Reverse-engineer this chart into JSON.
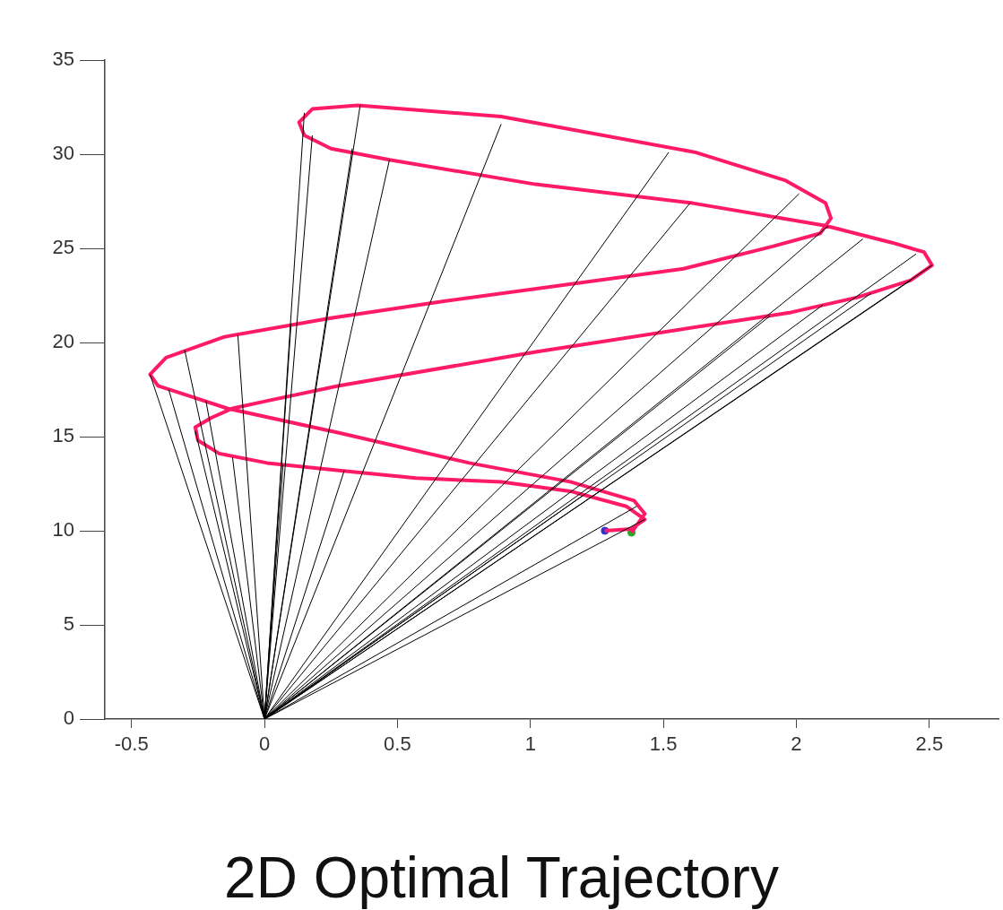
{
  "chart_data": {
    "type": "line",
    "title": "2D Optimal Trajectory",
    "xlim": [
      -0.6,
      2.76
    ],
    "ylim": [
      0,
      35
    ],
    "xticks": [
      -0.5,
      0,
      0.5,
      1,
      1.5,
      2,
      2.5
    ],
    "yticks": [
      0,
      5,
      10,
      15,
      20,
      25,
      30,
      35
    ],
    "grid": false,
    "legend": false,
    "series": [
      {
        "type": "line",
        "color": "#000000",
        "marker": "none",
        "x": [
          0,
          1.43
        ],
        "values": [
          0,
          10.6
        ]
      },
      {
        "type": "line",
        "color": "#000000",
        "marker": "none",
        "x": [
          0,
          1.4
        ],
        "values": [
          0,
          11.3
        ]
      },
      {
        "type": "line",
        "color": "#000000",
        "marker": "none",
        "x": [
          0,
          1.2
        ],
        "values": [
          0,
          11.9
        ]
      },
      {
        "type": "line",
        "color": "#000000",
        "marker": "none",
        "x": [
          0,
          2.51
        ],
        "values": [
          0,
          24.1
        ]
      },
      {
        "type": "line",
        "color": "#000000",
        "marker": "none",
        "x": [
          0,
          2.43
        ],
        "values": [
          0,
          23.3
        ]
      },
      {
        "type": "line",
        "color": "#000000",
        "marker": "none",
        "x": [
          0,
          2.28
        ],
        "values": [
          0,
          22.6
        ]
      },
      {
        "type": "line",
        "color": "#000000",
        "marker": "none",
        "x": [
          0,
          2.1
        ],
        "values": [
          0,
          22.0
        ]
      },
      {
        "type": "line",
        "color": "#000000",
        "marker": "none",
        "x": [
          0,
          1.9
        ],
        "values": [
          0,
          21.4
        ]
      },
      {
        "type": "line",
        "color": "#000000",
        "marker": "none",
        "x": [
          0,
          2.45
        ],
        "values": [
          0,
          24.7
        ]
      },
      {
        "type": "line",
        "color": "#000000",
        "marker": "none",
        "x": [
          0,
          2.25
        ],
        "values": [
          0,
          25.5
        ]
      },
      {
        "type": "line",
        "color": "#000000",
        "marker": "none",
        "x": [
          0,
          2.12
        ],
        "values": [
          0,
          26.2
        ]
      },
      {
        "type": "line",
        "color": "#000000",
        "marker": "none",
        "x": [
          0,
          1.6
        ],
        "values": [
          0,
          27.4
        ]
      },
      {
        "type": "line",
        "color": "#000000",
        "marker": "none",
        "x": [
          0,
          2.01
        ],
        "values": [
          0,
          27.9
        ]
      },
      {
        "type": "line",
        "color": "#000000",
        "marker": "none",
        "x": [
          0,
          1.52
        ],
        "values": [
          0,
          30.1
        ]
      },
      {
        "type": "line",
        "color": "#000000",
        "marker": "none",
        "x": [
          0,
          0.89
        ],
        "values": [
          0,
          31.6
        ]
      },
      {
        "type": "line",
        "color": "#000000",
        "marker": "none",
        "x": [
          0,
          0.47
        ],
        "values": [
          0,
          29.7
        ]
      },
      {
        "type": "line",
        "color": "#000000",
        "marker": "none",
        "x": [
          0,
          0.33
        ],
        "values": [
          0,
          30.3
        ]
      },
      {
        "type": "line",
        "color": "#000000",
        "marker": "none",
        "x": [
          0,
          0.18
        ],
        "values": [
          0,
          31.0
        ]
      },
      {
        "type": "line",
        "color": "#000000",
        "marker": "none",
        "x": [
          0,
          0.15
        ],
        "values": [
          0,
          32.2
        ]
      },
      {
        "type": "line",
        "color": "#000000",
        "marker": "none",
        "x": [
          0,
          0.36
        ],
        "values": [
          0,
          32.6
        ]
      },
      {
        "type": "line",
        "color": "#000000",
        "marker": "none",
        "x": [
          0,
          -0.43
        ],
        "values": [
          0,
          18.3
        ]
      },
      {
        "type": "line",
        "color": "#000000",
        "marker": "none",
        "x": [
          0,
          -0.36
        ],
        "values": [
          0,
          17.5
        ]
      },
      {
        "type": "line",
        "color": "#000000",
        "marker": "none",
        "x": [
          0,
          -0.22
        ],
        "values": [
          0,
          16.9
        ]
      },
      {
        "type": "line",
        "color": "#000000",
        "marker": "none",
        "x": [
          0,
          -0.3
        ],
        "values": [
          0,
          19.6
        ]
      },
      {
        "type": "line",
        "color": "#000000",
        "marker": "none",
        "x": [
          0,
          -0.1
        ],
        "values": [
          0,
          20.4
        ]
      },
      {
        "type": "line",
        "color": "#000000",
        "marker": "none",
        "x": [
          0,
          0.1
        ],
        "values": [
          0,
          21.0
        ]
      },
      {
        "type": "line",
        "color": "#000000",
        "marker": "none",
        "x": [
          0,
          -0.26
        ],
        "values": [
          0,
          15.3
        ]
      },
      {
        "type": "line",
        "color": "#000000",
        "marker": "none",
        "x": [
          0,
          -0.12
        ],
        "values": [
          0,
          13.9
        ]
      },
      {
        "type": "line",
        "color": "#000000",
        "marker": "none",
        "x": [
          0,
          0.07
        ],
        "values": [
          0,
          13.5
        ]
      },
      {
        "type": "line",
        "color": "#000000",
        "marker": "none",
        "x": [
          0,
          0.3
        ],
        "values": [
          0,
          13.2
        ]
      },
      {
        "type": "line",
        "color": "#ff1a66",
        "marker": "none",
        "x": [
          1.28,
          1.38,
          1.43,
          1.36,
          1.15,
          0.89,
          0.57,
          0.28,
          0.01,
          -0.17,
          -0.25,
          -0.26,
          -0.2,
          -0.12,
          0.01,
          0.28,
          1.02,
          1.98,
          2.23,
          2.43,
          2.51,
          2.48,
          2.36,
          2.11,
          1.61,
          1.02,
          0.47,
          0.25,
          0.15,
          0.13,
          0.18,
          0.35,
          0.89,
          1.62,
          1.96,
          2.11,
          2.13,
          2.09,
          1.91,
          1.57,
          0.68,
          0.25,
          -0.15,
          -0.37,
          -0.43,
          -0.4,
          -0.27,
          -0.14,
          0.28,
          0.77,
          1.15,
          1.39,
          1.43,
          1.38
        ],
        "values": [
          10.0,
          10.1,
          10.6,
          11.3,
          12.1,
          12.6,
          12.8,
          13.2,
          13.6,
          14.1,
          14.8,
          15.5,
          16.0,
          16.5,
          16.9,
          17.7,
          19.5,
          21.6,
          22.4,
          23.3,
          24.1,
          24.8,
          25.3,
          26.2,
          27.4,
          28.4,
          29.7,
          30.3,
          31.0,
          31.7,
          32.4,
          32.6,
          32.0,
          30.1,
          28.6,
          27.4,
          26.6,
          25.8,
          25.1,
          23.9,
          22.2,
          21.3,
          20.3,
          19.2,
          18.3,
          17.7,
          17.1,
          16.5,
          15.2,
          13.6,
          12.6,
          11.6,
          10.9,
          9.9
        ]
      },
      {
        "type": "scatter",
        "marker": "circle",
        "x": [
          1.28,
          1.38
        ],
        "values": [
          10.0,
          9.9
        ],
        "colors": [
          "#3333cc",
          "#22aa22"
        ]
      }
    ]
  }
}
